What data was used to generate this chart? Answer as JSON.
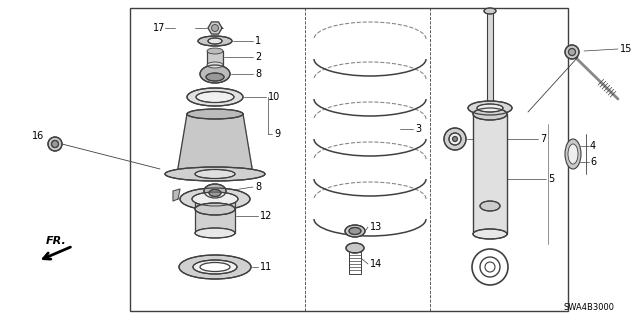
{
  "bg_color": "#ffffff",
  "line_color": "#404040",
  "text_color": "#000000",
  "part_code": "SWA4B3000",
  "fr_label": "FR.",
  "figsize": [
    6.4,
    3.19
  ],
  "dpi": 100
}
